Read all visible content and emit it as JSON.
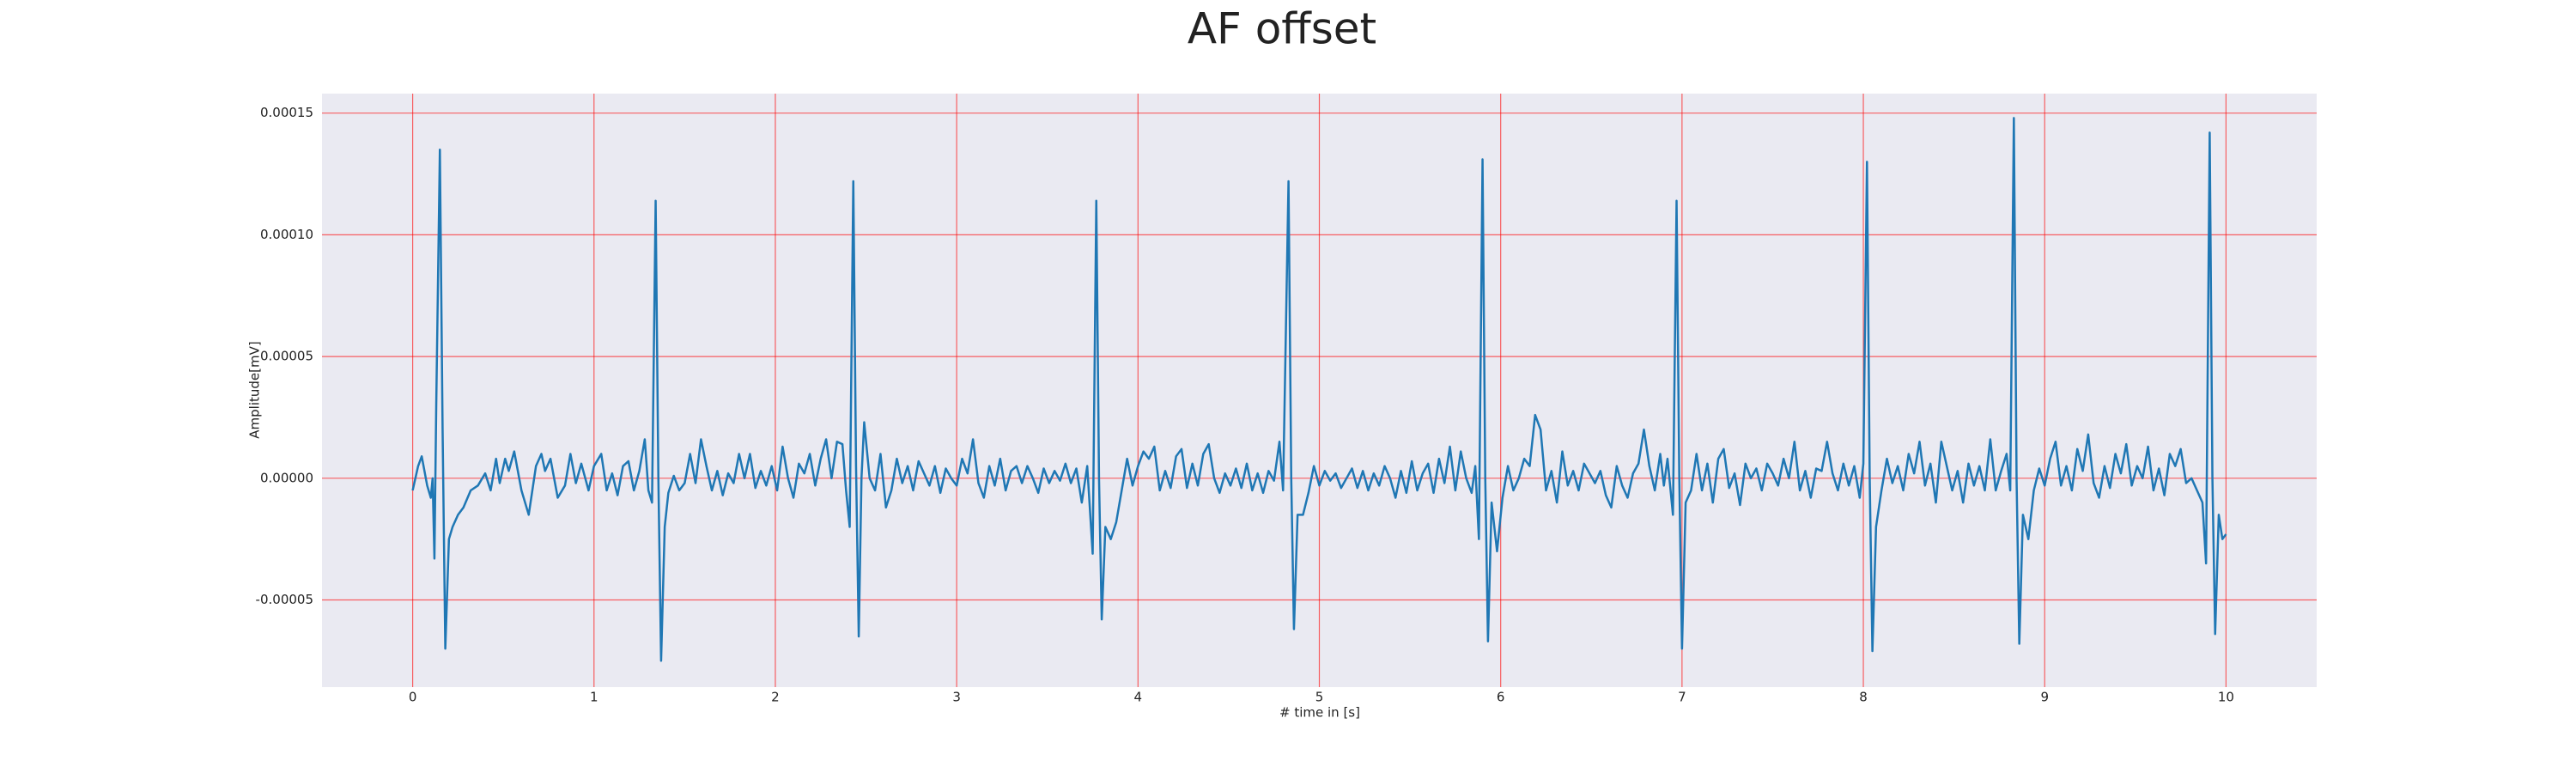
{
  "chart_data": {
    "type": "line",
    "title": "AF offset",
    "xlabel": "# time in [s]",
    "ylabel": "Amplitude[mV]",
    "color": "#1f77b4",
    "grid": true,
    "grid_color": "#ff0000",
    "xlim": [
      -0.5,
      10.5
    ],
    "xticks": [
      0,
      1,
      2,
      3,
      4,
      5,
      6,
      7,
      8,
      9,
      10
    ],
    "ylim": [
      -8.58e-05,
      0.000158
    ],
    "yticks": [
      -5e-05,
      {
        "value": 0,
        "label": "0.00000"
      },
      5e-05,
      {
        "value": 0.0001,
        "label": "0.00010"
      },
      0.00015
    ],
    "x": [
      0.0,
      0.03,
      0.05,
      0.08,
      0.1,
      0.11,
      0.12,
      0.13,
      0.15,
      0.165,
      0.18,
      0.2,
      0.22,
      0.25,
      0.28,
      0.32,
      0.36,
      0.4,
      0.43,
      0.46,
      0.48,
      0.51,
      0.53,
      0.56,
      0.6,
      0.64,
      0.68,
      0.71,
      0.73,
      0.76,
      0.8,
      0.84,
      0.87,
      0.9,
      0.93,
      0.97,
      1.0,
      1.04,
      1.07,
      1.1,
      1.13,
      1.16,
      1.19,
      1.22,
      1.25,
      1.28,
      1.3,
      1.32,
      1.34,
      1.355,
      1.37,
      1.39,
      1.41,
      1.44,
      1.47,
      1.5,
      1.53,
      1.56,
      1.59,
      1.62,
      1.65,
      1.68,
      1.71,
      1.74,
      1.77,
      1.8,
      1.83,
      1.86,
      1.89,
      1.92,
      1.95,
      1.98,
      2.01,
      2.04,
      2.07,
      2.1,
      2.13,
      2.16,
      2.19,
      2.22,
      2.25,
      2.28,
      2.31,
      2.34,
      2.37,
      2.39,
      2.41,
      2.43,
      2.445,
      2.46,
      2.475,
      2.49,
      2.52,
      2.55,
      2.58,
      2.61,
      2.64,
      2.67,
      2.7,
      2.73,
      2.76,
      2.79,
      2.82,
      2.85,
      2.88,
      2.91,
      2.94,
      2.97,
      3.0,
      3.03,
      3.06,
      3.09,
      3.12,
      3.15,
      3.18,
      3.21,
      3.24,
      3.27,
      3.3,
      3.33,
      3.36,
      3.39,
      3.42,
      3.45,
      3.48,
      3.51,
      3.54,
      3.57,
      3.6,
      3.63,
      3.66,
      3.69,
      3.72,
      3.75,
      3.77,
      3.785,
      3.8,
      3.82,
      3.85,
      3.88,
      3.91,
      3.94,
      3.97,
      4.0,
      4.03,
      4.06,
      4.09,
      4.12,
      4.15,
      4.18,
      4.21,
      4.24,
      4.27,
      4.3,
      4.33,
      4.36,
      4.39,
      4.42,
      4.45,
      4.48,
      4.51,
      4.54,
      4.57,
      4.6,
      4.63,
      4.66,
      4.69,
      4.72,
      4.75,
      4.78,
      4.8,
      4.83,
      4.845,
      4.86,
      4.88,
      4.91,
      4.94,
      4.97,
      5.0,
      5.03,
      5.06,
      5.09,
      5.12,
      5.15,
      5.18,
      5.21,
      5.24,
      5.27,
      5.3,
      5.33,
      5.36,
      5.39,
      5.42,
      5.45,
      5.48,
      5.51,
      5.54,
      5.57,
      5.6,
      5.63,
      5.66,
      5.69,
      5.72,
      5.75,
      5.78,
      5.81,
      5.84,
      5.86,
      5.88,
      5.9,
      5.915,
      5.93,
      5.95,
      5.98,
      6.01,
      6.04,
      6.07,
      6.1,
      6.13,
      6.16,
      6.19,
      6.22,
      6.25,
      6.28,
      6.31,
      6.34,
      6.37,
      6.4,
      6.43,
      6.46,
      6.49,
      6.52,
      6.55,
      6.58,
      6.61,
      6.64,
      6.67,
      6.7,
      6.73,
      6.76,
      6.79,
      6.82,
      6.85,
      6.88,
      6.9,
      6.92,
      6.95,
      6.97,
      6.985,
      7.0,
      7.02,
      7.05,
      7.08,
      7.11,
      7.14,
      7.17,
      7.2,
      7.23,
      7.26,
      7.29,
      7.32,
      7.35,
      7.38,
      7.41,
      7.44,
      7.47,
      7.5,
      7.53,
      7.56,
      7.59,
      7.62,
      7.65,
      7.68,
      7.71,
      7.74,
      7.77,
      7.8,
      7.83,
      7.86,
      7.89,
      7.92,
      7.95,
      7.98,
      8.0,
      8.02,
      8.035,
      8.05,
      8.07,
      8.1,
      8.13,
      8.16,
      8.19,
      8.22,
      8.25,
      8.28,
      8.31,
      8.34,
      8.37,
      8.4,
      8.43,
      8.46,
      8.49,
      8.52,
      8.55,
      8.58,
      8.61,
      8.64,
      8.67,
      8.7,
      8.73,
      8.76,
      8.79,
      8.81,
      8.83,
      8.845,
      8.86,
      8.88,
      8.91,
      8.94,
      8.97,
      9.0,
      9.03,
      9.06,
      9.09,
      9.12,
      9.15,
      9.18,
      9.21,
      9.24,
      9.27,
      9.3,
      9.33,
      9.36,
      9.39,
      9.42,
      9.45,
      9.48,
      9.51,
      9.54,
      9.57,
      9.6,
      9.63,
      9.66,
      9.69,
      9.72,
      9.75,
      9.78,
      9.81,
      9.84,
      9.87,
      9.89,
      9.91,
      9.925,
      9.94,
      9.96,
      9.98,
      10.0
    ],
    "values": [
      -5e-06,
      5e-06,
      9e-06,
      -3e-06,
      -8e-06,
      0.0,
      -3.3e-05,
      3e-05,
      0.000135,
      2e-05,
      -7e-05,
      -2.5e-05,
      -2e-05,
      -1.5e-05,
      -1.2e-05,
      -5e-06,
      -3e-06,
      2e-06,
      -5e-06,
      8e-06,
      -2e-06,
      8e-06,
      3e-06,
      1.1e-05,
      -5e-06,
      -1.5e-05,
      5e-06,
      1e-05,
      3e-06,
      8e-06,
      -8e-06,
      -3e-06,
      1e-05,
      -2e-06,
      6e-06,
      -5e-06,
      5e-06,
      1e-05,
      -5e-06,
      2e-06,
      -7e-06,
      5e-06,
      7e-06,
      -5e-06,
      3e-06,
      1.6e-05,
      -5e-06,
      -1e-05,
      0.000114,
      0.0,
      -7.5e-05,
      -2e-05,
      -6e-06,
      1e-06,
      -5e-06,
      -2e-06,
      1e-05,
      -2e-06,
      1.6e-05,
      5e-06,
      -5e-06,
      3e-06,
      -7e-06,
      2e-06,
      -2e-06,
      1e-05,
      0.0,
      1e-05,
      -4e-06,
      3e-06,
      -3e-06,
      5e-06,
      -5e-06,
      1.3e-05,
      0.0,
      -8e-06,
      6e-06,
      2e-06,
      1e-05,
      -3e-06,
      8e-06,
      1.6e-05,
      0.0,
      1.5e-05,
      1.4e-05,
      -5e-06,
      -2e-05,
      0.000122,
      5e-06,
      -6.5e-05,
      0.0,
      2.3e-05,
      0.0,
      -5e-06,
      1e-05,
      -1.2e-05,
      -5e-06,
      8e-06,
      -2e-06,
      5e-06,
      -5e-06,
      7e-06,
      2e-06,
      -3e-06,
      5e-06,
      -6e-06,
      4e-06,
      0.0,
      -3e-06,
      8e-06,
      2e-06,
      1.6e-05,
      -2e-06,
      -8e-06,
      5e-06,
      -3e-06,
      8e-06,
      -5e-06,
      3e-06,
      5e-06,
      -2e-06,
      5e-06,
      0.0,
      -6e-06,
      4e-06,
      -2e-06,
      3e-06,
      -1e-06,
      6e-06,
      -2e-06,
      4e-06,
      -1e-05,
      5e-06,
      -3.1e-05,
      0.000114,
      0.0,
      -5.8e-05,
      -2e-05,
      -2.5e-05,
      -1.8e-05,
      -5e-06,
      8e-06,
      -3e-06,
      5e-06,
      1.1e-05,
      8e-06,
      1.3e-05,
      -5e-06,
      3e-06,
      -4e-06,
      9e-06,
      1.2e-05,
      -4e-06,
      6e-06,
      -3e-06,
      1e-05,
      1.4e-05,
      0.0,
      -6e-06,
      2e-06,
      -3e-06,
      4e-06,
      -4e-06,
      6e-06,
      -5e-06,
      2e-06,
      -6e-06,
      3e-06,
      -1e-06,
      1.5e-05,
      -5e-06,
      0.000122,
      0.0,
      -6.2e-05,
      -1.5e-05,
      -1.5e-05,
      -6e-06,
      5e-06,
      -3e-06,
      3e-06,
      -1e-06,
      2e-06,
      -4e-06,
      0.0,
      4e-06,
      -4e-06,
      3e-06,
      -5e-06,
      2e-06,
      -3e-06,
      5e-06,
      0.0,
      -8e-06,
      3e-06,
      -6e-06,
      7e-06,
      -5e-06,
      2e-06,
      6e-06,
      -6e-06,
      8e-06,
      -2e-06,
      1.3e-05,
      -5e-06,
      1.1e-05,
      0.0,
      -6e-06,
      5e-06,
      -2.5e-05,
      0.000131,
      0.0,
      -6.7e-05,
      -1e-05,
      -3e-05,
      -8e-06,
      5e-06,
      -5e-06,
      0.0,
      8e-06,
      5e-06,
      2.6e-05,
      2e-05,
      -5e-06,
      3e-06,
      -1e-05,
      1.1e-05,
      -3e-06,
      3e-06,
      -5e-06,
      6e-06,
      2e-06,
      -2e-06,
      3e-06,
      -7e-06,
      -1.2e-05,
      5e-06,
      -3e-06,
      -8e-06,
      2e-06,
      6e-06,
      2e-05,
      5e-06,
      -5e-06,
      1e-05,
      -3e-06,
      8e-06,
      -1.5e-05,
      0.000114,
      0.0,
      -7e-05,
      -1e-05,
      -5e-06,
      1e-05,
      -5e-06,
      6e-06,
      -1e-05,
      8e-06,
      1.2e-05,
      -4e-06,
      2e-06,
      -1.1e-05,
      6e-06,
      0.0,
      4e-06,
      -5e-06,
      6e-06,
      2e-06,
      -3e-06,
      8e-06,
      0.0,
      1.5e-05,
      -5e-06,
      3e-06,
      -8e-06,
      4e-06,
      3e-06,
      1.5e-05,
      2e-06,
      -5e-06,
      6e-06,
      -3e-06,
      5e-06,
      -8e-06,
      6e-06,
      0.00013,
      0.0,
      -7.1e-05,
      -2e-05,
      -5e-06,
      8e-06,
      -2e-06,
      5e-06,
      -5e-06,
      1e-05,
      2e-06,
      1.5e-05,
      -3e-06,
      6e-06,
      -1e-05,
      1.5e-05,
      5e-06,
      -5e-06,
      3e-06,
      -1e-05,
      6e-06,
      -3e-06,
      5e-06,
      -5e-06,
      1.6e-05,
      -5e-06,
      3e-06,
      1e-05,
      -5e-06,
      0.000148,
      0.0,
      -6.8e-05,
      -1.5e-05,
      -2.5e-05,
      -5e-06,
      4e-06,
      -3e-06,
      8e-06,
      1.5e-05,
      -3e-06,
      5e-06,
      -5e-06,
      1.2e-05,
      3e-06,
      1.8e-05,
      -2e-06,
      -8e-06,
      5e-06,
      -4e-06,
      1e-05,
      2e-06,
      1.4e-05,
      -3e-06,
      5e-06,
      0.0,
      1.3e-05,
      -5e-06,
      4e-06,
      -7e-06,
      1e-05,
      5e-06,
      1.2e-05,
      -2e-06,
      0.0,
      -5e-06,
      -1e-05,
      -3.5e-05,
      0.000142,
      0.0,
      -6.4e-05,
      -1.5e-05,
      -2.5e-05,
      -2.3e-05
    ]
  }
}
